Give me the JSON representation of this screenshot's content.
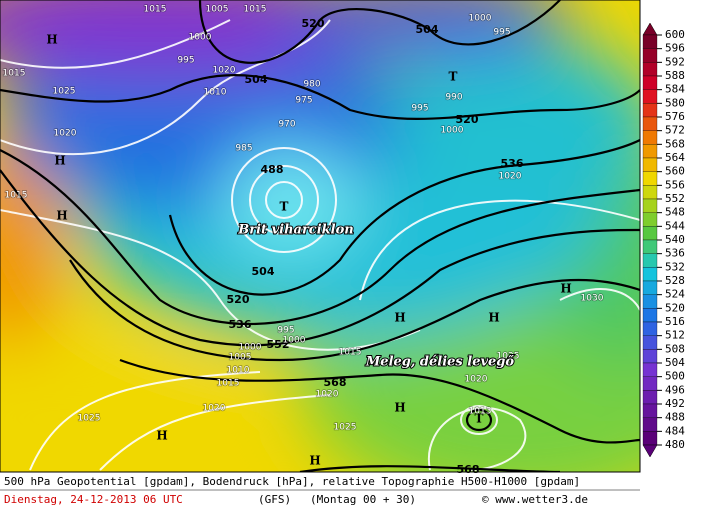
{
  "map": {
    "geopotential_labels": [
      "504",
      "520",
      "504",
      "520",
      "536",
      "488",
      "504",
      "520",
      "536",
      "552",
      "568",
      "568"
    ],
    "pressure_labels": [
      "1015",
      "1005",
      "1015",
      "1000",
      "995",
      "1020",
      "1010",
      "1015",
      "1025",
      "1020",
      "1015",
      "985",
      "970",
      "975",
      "980",
      "990",
      "995",
      "1000",
      "1020",
      "1030",
      "1025",
      "1015",
      "1020",
      "1020",
      "1025",
      "1020",
      "1025",
      "1015",
      "1010",
      "1005",
      "1000",
      "995",
      "1013",
      "1000",
      "995",
      "1000"
    ],
    "highs": [
      "H",
      "H",
      "H",
      "H",
      "H",
      "H",
      "H",
      "H",
      "H"
    ],
    "lows": [
      "T",
      "T",
      "T"
    ],
    "annotations": [
      "Brit viharciklon",
      "Meleg, délies levegő"
    ]
  },
  "legend": {
    "ticks": [
      "600",
      "596",
      "592",
      "588",
      "584",
      "580",
      "576",
      "572",
      "568",
      "564",
      "560",
      "556",
      "552",
      "548",
      "544",
      "540",
      "536",
      "532",
      "528",
      "524",
      "520",
      "516",
      "512",
      "508",
      "504",
      "500",
      "496",
      "492",
      "488",
      "484",
      "480"
    ]
  },
  "footer": {
    "line1": "500 hPa Geopotential [gpdam], Bodendruck [hPa], relative Topographie H500-H1000 [gpdam]",
    "date": "Dienstag, 24-12-2013  06 UTC",
    "model": "(GFS)",
    "run": "(Montag 00 + 30)",
    "credit": "© www.wetter3.de"
  }
}
